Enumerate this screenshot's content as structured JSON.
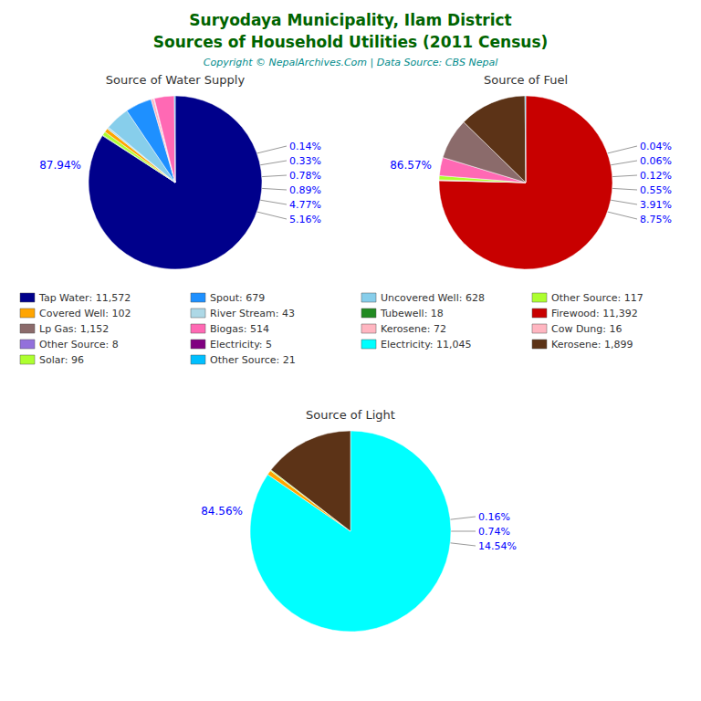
{
  "title": "Suryodaya Municipality, Ilam District",
  "subtitle": "Sources of Household Utilities (2011 Census)",
  "annotations": [
    "Copyright © NepalArchives.Com | Data Source: CBS Nepal"
  ],
  "legend_entries": [
    {
      "name": "Tap Water: 11,572",
      "color": "#00008B"
    },
    {
      "name": "Covered Well: 102",
      "color": "#FFA500"
    },
    {
      "name": "Lp Gas: 1,152",
      "color": "#8B6B6B"
    },
    {
      "name": "Other Source: 8",
      "color": "#9370DB"
    },
    {
      "name": "Solar: 96",
      "color": "#ADFF2F"
    },
    {
      "name": "Spout: 679",
      "color": "#1E90FF"
    },
    {
      "name": "River Stream: 43",
      "color": "#ADD8E6"
    },
    {
      "name": "Biogas: 514",
      "color": "#FF69B4"
    },
    {
      "name": "Electricity: 5",
      "color": "#800080"
    },
    {
      "name": "Other Source: 21",
      "color": "#00BFFF"
    },
    {
      "name": "Uncovered Well: 628",
      "color": "#87CEEB"
    },
    {
      "name": "Tubewell: 18",
      "color": "#228B22"
    },
    {
      "name": "Kerosene: 72",
      "color": "#FFB6C1"
    },
    {
      "name": "Electricity: 11,045",
      "color": "#00FFFF"
    },
    {
      "name": "Other Source: 117",
      "color": "#ADFF2F"
    },
    {
      "name": "Firewood: 11,392",
      "color": "#C80000"
    },
    {
      "name": "Cow Dung: 16",
      "color": "#FFB6C1"
    },
    {
      "name": "Kerosene: 1,899",
      "color": "#5C3317"
    }
  ],
  "chart_data": [
    {
      "type": "pie",
      "title": "Source of Water Supply",
      "values": [
        11572,
        18,
        96,
        102,
        43,
        628,
        679,
        72,
        5,
        8,
        514,
        21
      ],
      "colors": [
        "#00008B",
        "#228B22",
        "#ADFF2F",
        "#FFA500",
        "#ADD8E6",
        "#87CEEB",
        "#1E90FF",
        "#FFB6C1",
        "#800080",
        "#9370DB",
        "#FF69B4",
        "#00BFFF"
      ],
      "annotations": [
        "87.94%",
        "0.14%",
        "0.33%",
        "0.78%",
        "0.89%",
        "4.77%",
        "5.16%"
      ]
    },
    {
      "type": "pie",
      "title": "Source of Fuel",
      "values": [
        11392,
        5,
        16,
        117,
        514,
        1152,
        1899,
        21
      ],
      "colors": [
        "#C80000",
        "#800080",
        "#FFB6C1",
        "#ADFF2F",
        "#FF69B4",
        "#8B6B6B",
        "#5C3317",
        "#00BFFF"
      ],
      "annotations": [
        "86.57%",
        "0.04%",
        "0.06%",
        "0.12%",
        "0.55%",
        "3.91%",
        "8.75%"
      ]
    },
    {
      "type": "pie",
      "title": "Source of Light",
      "values": [
        11045,
        96,
        21,
        1899
      ],
      "colors": [
        "#00FFFF",
        "#FFA500",
        "#ADFF2F",
        "#5C3317"
      ],
      "annotations": [
        "84.56%",
        "0.16%",
        "0.74%",
        "14.54%"
      ]
    }
  ]
}
